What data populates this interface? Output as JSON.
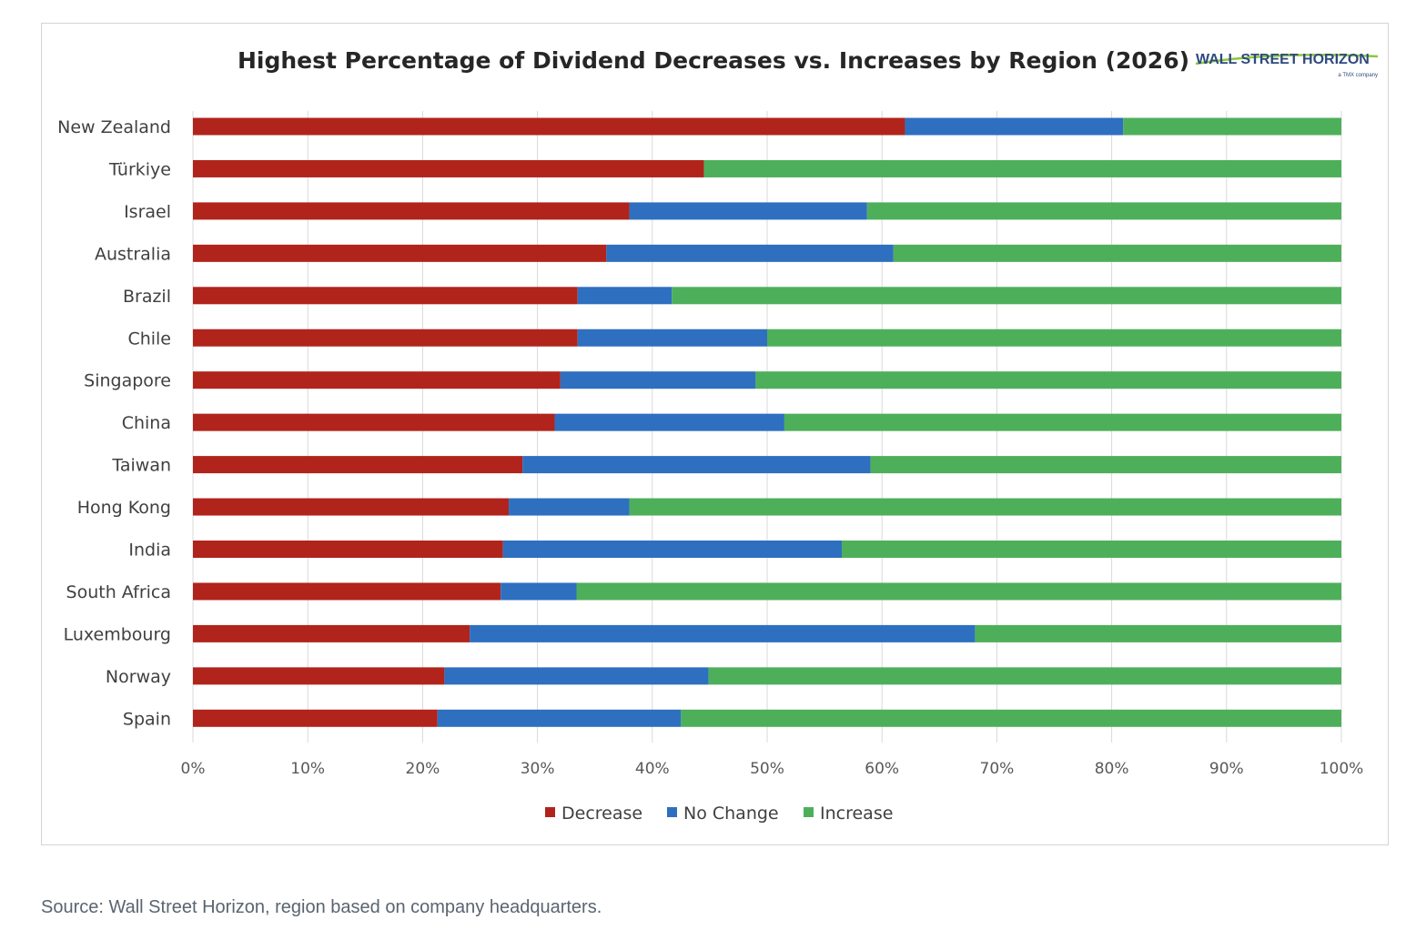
{
  "logo": {
    "name": "WALL STREET HORIZON",
    "tagline": "a TMX company",
    "colors": {
      "text": "#2e4a7d",
      "swoosh": "#8cc63f"
    }
  },
  "source_note": "Source: Wall Street Horizon, region based on company headquarters.",
  "chart_data": {
    "type": "bar",
    "orientation": "horizontal",
    "stacked": "percent",
    "title": "Highest Percentage of Dividend Decreases vs. Increases by Region (2026)",
    "xlabel": "",
    "ylabel": "",
    "xlim": [
      0,
      100
    ],
    "x_ticks": [
      "0%",
      "10%",
      "20%",
      "30%",
      "40%",
      "50%",
      "60%",
      "70%",
      "80%",
      "90%",
      "100%"
    ],
    "x_tick_values": [
      0,
      10,
      20,
      30,
      40,
      50,
      60,
      70,
      80,
      90,
      100
    ],
    "grid": "vertical",
    "legend_position": "bottom",
    "categories": [
      "New Zealand",
      "Türkiye",
      "Israel",
      "Australia",
      "Brazil",
      "Chile",
      "Singapore",
      "China",
      "Taiwan",
      "Hong Kong",
      "India",
      "South Africa",
      "Luxembourg",
      "Norway",
      "Spain"
    ],
    "series": [
      {
        "name": "Decrease",
        "color": "#b0241c",
        "values": [
          62,
          44.5,
          38,
          36,
          33.5,
          33.5,
          32,
          31.5,
          28.7,
          27.5,
          27,
          26.8,
          24.1,
          21.9,
          21.3
        ]
      },
      {
        "name": "No Change",
        "color": "#2e6fc0",
        "values": [
          19,
          0,
          20.7,
          25,
          8.2,
          16.5,
          17,
          20,
          30.3,
          10.5,
          29.5,
          6.6,
          44,
          23,
          21.2
        ]
      },
      {
        "name": "Increase",
        "color": "#4eaf5a",
        "values": [
          19,
          55.5,
          41.3,
          39,
          58.3,
          50,
          51,
          48.5,
          41,
          62,
          43.5,
          66.6,
          31.9,
          55.1,
          57.5
        ]
      }
    ]
  }
}
